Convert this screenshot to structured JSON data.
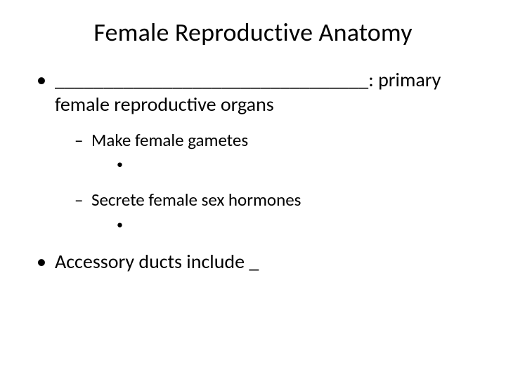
{
  "slide": {
    "title": "Female Reproductive Anatomy",
    "bullets": [
      {
        "text": "________________________________: primary female reproductive organs",
        "sub": [
          {
            "text": "Make female gametes",
            "subsub": [
              ""
            ]
          },
          {
            "text": "Secrete female sex hormones",
            "subsub": [
              ""
            ]
          }
        ]
      },
      {
        "text": "Accessory ducts include _",
        "sub": []
      }
    ]
  },
  "style": {
    "background_color": "#ffffff",
    "text_color": "#000000",
    "title_fontsize": 36,
    "body_fontsize_l1": 28,
    "body_fontsize_l2": 25,
    "body_fontsize_l3": 22,
    "font_family": "Calibri"
  }
}
